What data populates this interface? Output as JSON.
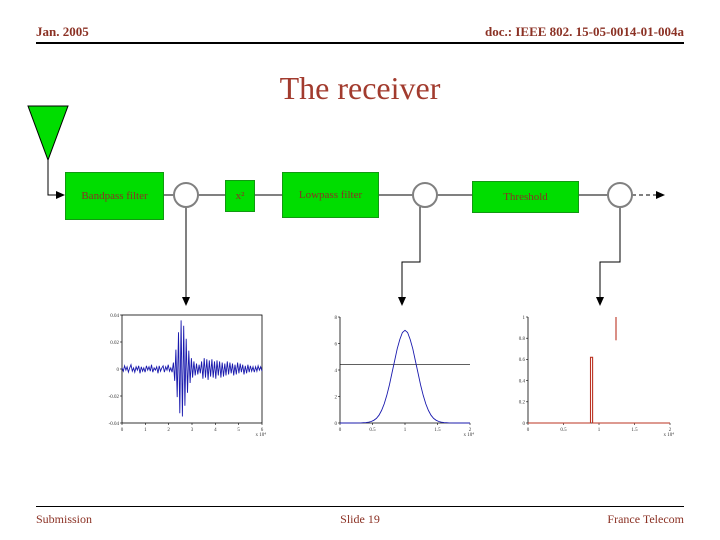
{
  "header": {
    "date": "Jan. 2005",
    "doc": "doc.: IEEE 802. 15-05-0014-01-004a"
  },
  "title": "The receiver",
  "footer": {
    "left": "Submission",
    "center": "Slide 19",
    "right": "France Telecom"
  },
  "diagram": {
    "blocks": [
      {
        "id": "bandpass",
        "label": "Bandpass filter"
      },
      {
        "id": "squarer",
        "label": "x²"
      },
      {
        "id": "lowpass",
        "label": "Lowpass filter"
      },
      {
        "id": "threshold",
        "label": "Threshold"
      }
    ]
  },
  "colors": {
    "block_green": "#00dd00",
    "accent_maroon": "#8b3124",
    "title_maroon": "#a23b2e",
    "waveform_blue": "#1a1aae",
    "threshold_red": "#bb3322"
  },
  "chart_data": [
    {
      "id": "plot-bandpass-output",
      "type": "line",
      "title": "",
      "color": "#1a1aae",
      "box": true,
      "xlim": [
        0,
        1
      ],
      "ylim": [
        -0.05,
        0.05
      ],
      "y": [
        0.001,
        -0.002,
        0.003,
        -0.001,
        0.002,
        -0.003,
        0.001,
        0.004,
        -0.002,
        0.001,
        -0.003,
        0.002,
        -0.001,
        0.003,
        -0.004,
        0.002,
        -0.002,
        0.001,
        -0.003,
        0.003,
        -0.001,
        0.002,
        -0.002,
        0.004,
        -0.003,
        0.001,
        -0.001,
        0.002,
        -0.004,
        0.003,
        -0.002,
        0.001,
        0.003,
        -0.003,
        0.002,
        -0.001,
        0.004,
        -0.002,
        0.001,
        -0.003,
        0.006,
        -0.011,
        0.018,
        -0.026,
        0.034,
        -0.041,
        0.045,
        -0.044,
        0.04,
        -0.034,
        0.028,
        -0.022,
        0.017,
        -0.013,
        0.01,
        -0.008,
        0.007,
        -0.006,
        0.005,
        -0.005,
        0.004,
        -0.004,
        0.007,
        -0.009,
        0.01,
        -0.008,
        0.009,
        -0.01,
        0.008,
        -0.007,
        0.009,
        -0.008,
        0.007,
        -0.009,
        0.008,
        -0.006,
        0.007,
        -0.008,
        0.006,
        -0.007,
        0.005,
        -0.006,
        0.007,
        -0.005,
        0.006,
        -0.004,
        0.005,
        -0.006,
        0.004,
        -0.005,
        0.006,
        -0.004,
        0.005,
        -0.003,
        0.004,
        -0.005,
        0.003,
        -0.004,
        0.004,
        -0.003,
        0.003,
        -0.002,
        0.002,
        -0.003,
        0.002,
        -0.002,
        0.003,
        -0.001,
        0.002,
        -0.002
      ],
      "y_ticks": [
        "0.04",
        "0.02",
        "0",
        "-0.02",
        "-0.04"
      ],
      "x_ticks": [
        "0",
        "1",
        "2",
        "3",
        "4",
        "5",
        "6"
      ],
      "x_scale": "x 10⁴"
    },
    {
      "id": "plot-lowpass-output",
      "type": "line",
      "title": "",
      "color": "#1a1aae",
      "box": false,
      "xlim": [
        0,
        1
      ],
      "ylim": [
        0,
        8
      ],
      "y": [
        0,
        0,
        0,
        0,
        0,
        0,
        0,
        0.01,
        0.01,
        0.02,
        0.03,
        0.06,
        0.11,
        0.2,
        0.35,
        0.59,
        0.95,
        1.44,
        2.09,
        2.87,
        3.78,
        4.69,
        5.6,
        6.3,
        6.83,
        7,
        6.83,
        6.3,
        5.6,
        4.69,
        3.78,
        2.87,
        2.09,
        1.44,
        0.95,
        0.59,
        0.35,
        0.2,
        0.11,
        0.06,
        0.03,
        0.02,
        0.01,
        0.01,
        0,
        0,
        0,
        0,
        0,
        0,
        0
      ],
      "hline": 4.4,
      "y_ticks": [
        "8",
        "6",
        "4",
        "2",
        "0"
      ],
      "x_ticks": [
        "0",
        "0.5",
        "1",
        "1.5",
        "2"
      ],
      "x_scale": "x 10⁴"
    },
    {
      "id": "plot-threshold-output",
      "type": "line",
      "title": "",
      "color": "#bb3322",
      "box": false,
      "xlim": [
        0,
        1
      ],
      "ylim": [
        0,
        1
      ],
      "segments": [
        [
          [
            0,
            0
          ],
          [
            0.44,
            0
          ],
          [
            0.44,
            0.62
          ],
          [
            0.455,
            0.62
          ],
          [
            0.455,
            0
          ],
          [
            1,
            0
          ]
        ],
        [
          [
            0.62,
            0.78
          ],
          [
            0.62,
            1.0
          ]
        ]
      ],
      "y_ticks": [
        "1",
        "0.8",
        "0.6",
        "0.4",
        "0.2",
        "0"
      ],
      "x_ticks": [
        "0",
        "0.5",
        "1",
        "1.5",
        "2"
      ],
      "x_scale": "x 10⁴"
    }
  ]
}
